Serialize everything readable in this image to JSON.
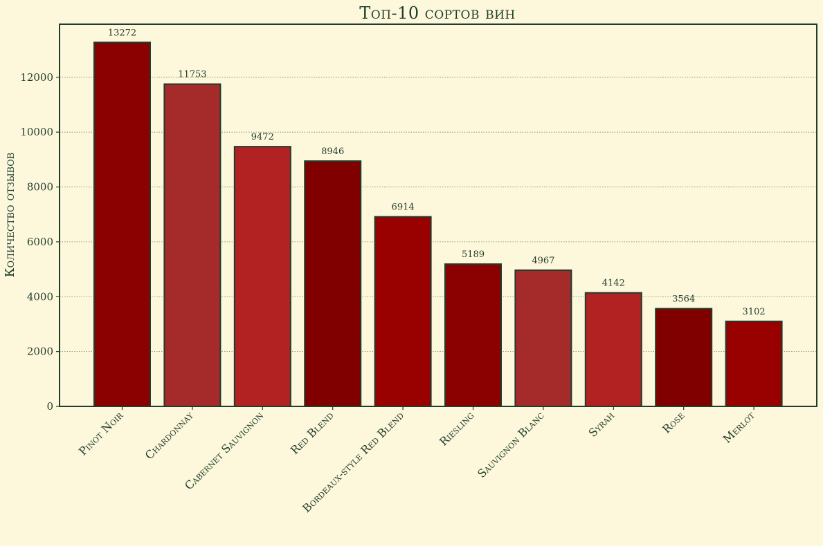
{
  "chart_data": {
    "type": "bar",
    "title": "Топ-10 сортов вин",
    "xlabel": "",
    "ylabel": "Количество отзывов",
    "categories": [
      "Pinot Noir",
      "Chardonnay",
      "Cabernet Sauvignon",
      "Red Blend",
      "Bordeaux-style Red Blend",
      "Riesling",
      "Sauvignon Blanc",
      "Syrah",
      "Rose",
      "Merlot"
    ],
    "values": [
      13272,
      11753,
      9472,
      8946,
      6914,
      5189,
      4967,
      4142,
      3564,
      3102
    ],
    "ylim": [
      0,
      13936
    ],
    "yticks": [
      0,
      2000,
      4000,
      6000,
      8000,
      10000,
      12000
    ],
    "grid": "horizontal dotted",
    "colors": [
      "#8b0000",
      "#a52a2a",
      "#b22222",
      "#800000",
      "#990000",
      "#8b0000",
      "#a52a2a",
      "#b22222",
      "#800000",
      "#990000"
    ],
    "bar_edge_color": "#1f3d2b",
    "background": "#fdf7dc"
  }
}
